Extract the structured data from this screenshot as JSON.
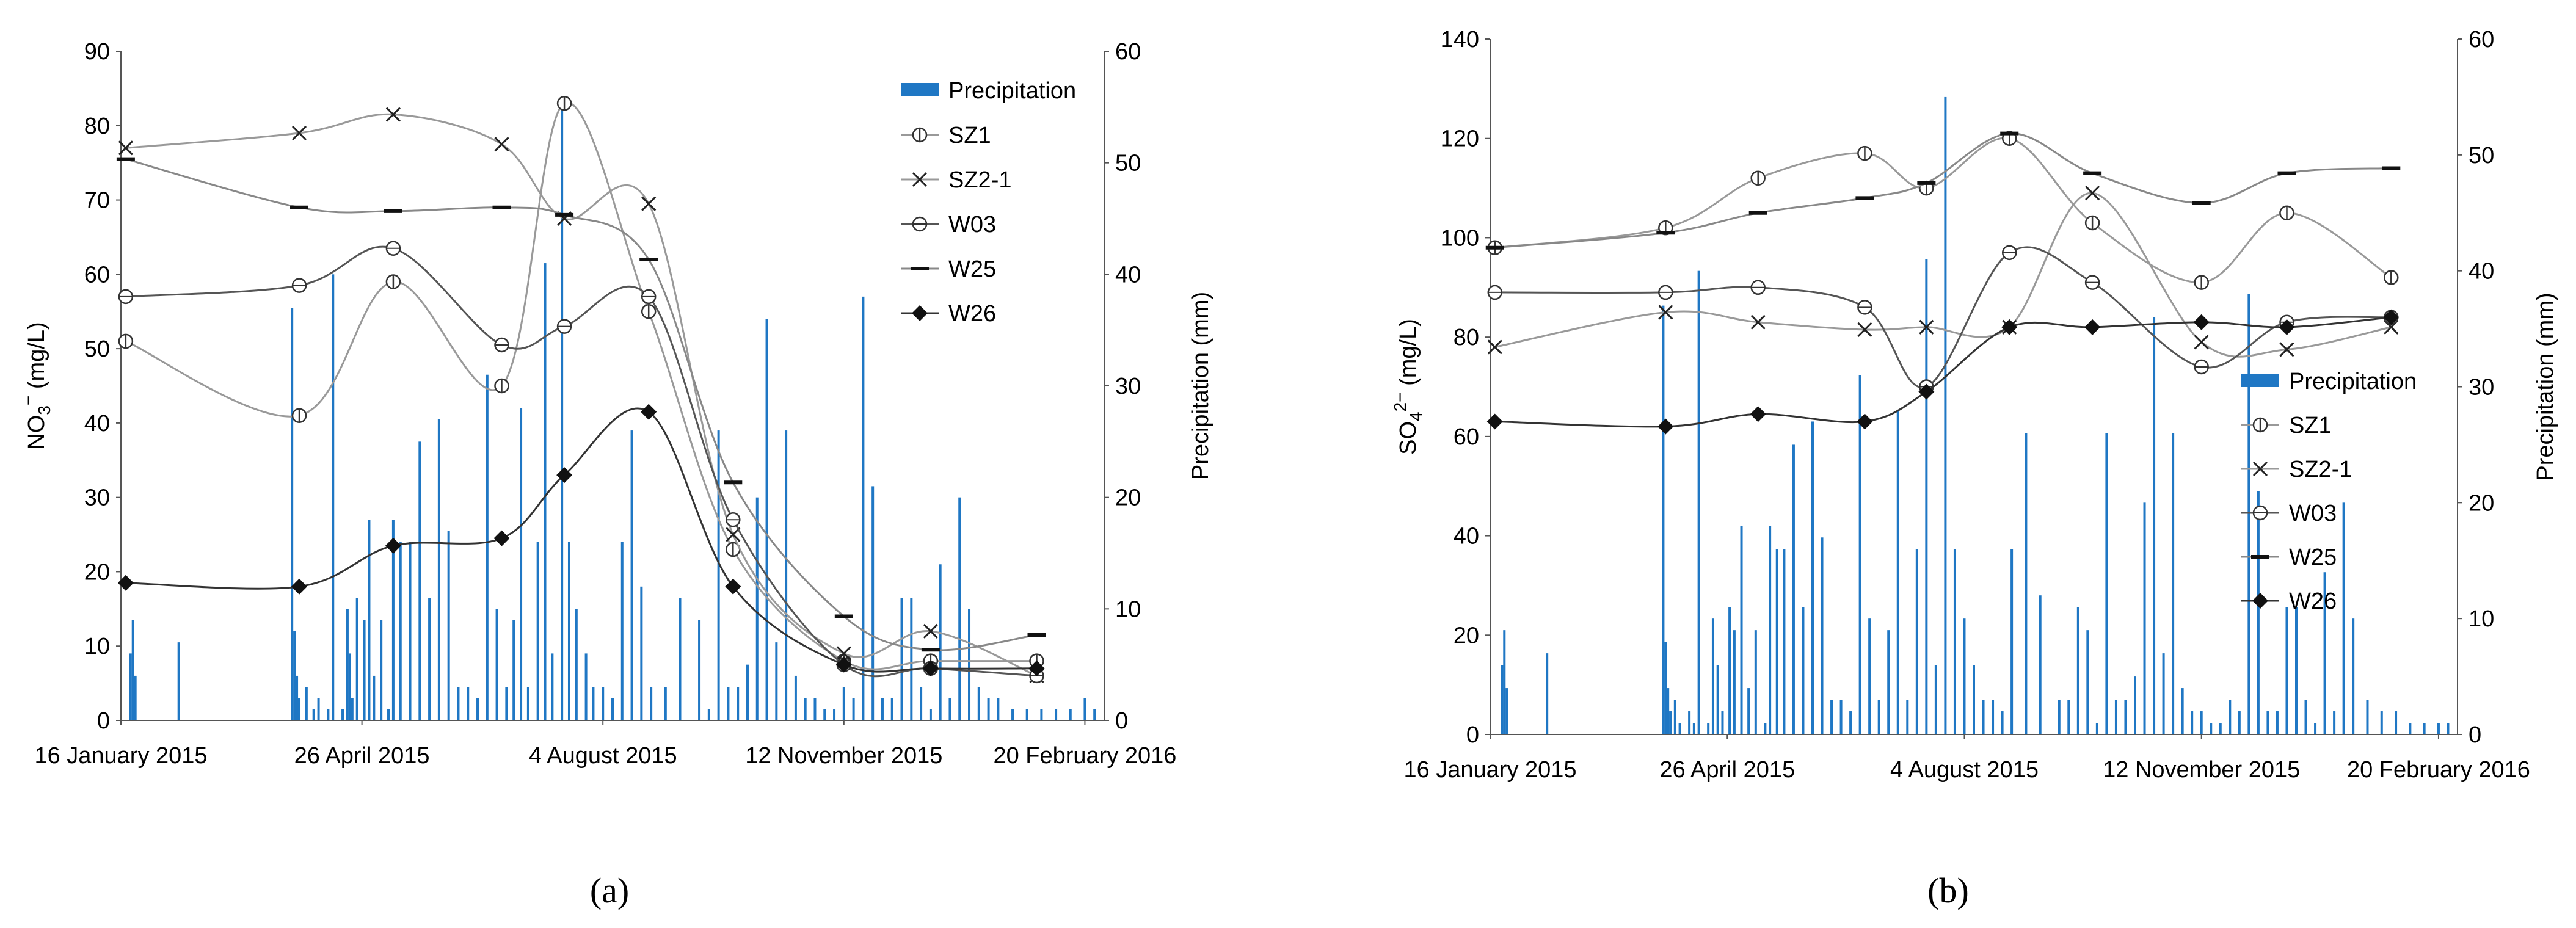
{
  "chart_data": [
    {
      "panel": "a",
      "panel_label": "(a)",
      "type": "line",
      "xlabel": "",
      "ylabel": "NO₃⁻ (mg/L)",
      "ylabel_parts": [
        "NO",
        "3",
        "−",
        " (mg/L)"
      ],
      "y2label": "Precipitation (mm)",
      "ylim": [
        0,
        90
      ],
      "yticks": [
        "0",
        "10",
        "20",
        "30",
        "40",
        "50",
        "60",
        "70",
        "80",
        "90"
      ],
      "y2lim": [
        0,
        60
      ],
      "y2ticks": [
        "0",
        "10",
        "20",
        "30",
        "40",
        "50",
        "60"
      ],
      "xlim": [
        0,
        408
      ],
      "xticks": [
        {
          "day": 0,
          "label": "16 January 2015"
        },
        {
          "day": 100,
          "label": "26 April 2015"
        },
        {
          "day": 200,
          "label": "4 August 2015"
        },
        {
          "day": 300,
          "label": "12 November 2015"
        },
        {
          "day": 400,
          "label": "20 February 2016"
        }
      ],
      "legend": [
        "Precipitation",
        "SZ1",
        "SZ2-1",
        "W03",
        "W25",
        "W26"
      ],
      "legend_position": "top-right",
      "series": [
        {
          "name": "SZ1",
          "marker": "circle-bar",
          "color": "#999999",
          "x": [
            2,
            74,
            113,
            158,
            184,
            219,
            254,
            300,
            336,
            380
          ],
          "y": [
            51,
            41,
            59,
            45,
            83,
            55,
            23,
            8,
            8,
            8
          ]
        },
        {
          "name": "SZ2-1",
          "marker": "x",
          "color": "#999999",
          "x": [
            2,
            74,
            113,
            158,
            184,
            219,
            254,
            300,
            336,
            380
          ],
          "y": [
            77,
            79,
            81.5,
            77.5,
            67.5,
            69.5,
            25,
            9,
            12,
            6
          ]
        },
        {
          "name": "W03",
          "marker": "circle-open",
          "color": "#555555",
          "x": [
            2,
            74,
            113,
            158,
            184,
            219,
            254,
            300,
            336,
            380
          ],
          "y": [
            57,
            58.5,
            63.5,
            50.5,
            53,
            57,
            27,
            7.5,
            7,
            6
          ]
        },
        {
          "name": "W25",
          "marker": "dash",
          "color": "#888888",
          "x": [
            2,
            74,
            113,
            158,
            184,
            219,
            254,
            300,
            336,
            380
          ],
          "y": [
            75.5,
            69,
            68.5,
            69,
            68,
            62,
            32,
            14,
            9.5,
            11.5
          ]
        },
        {
          "name": "W26",
          "marker": "diamond",
          "color": "#333333",
          "x": [
            2,
            74,
            113,
            158,
            184,
            219,
            254,
            300,
            336,
            380
          ],
          "y": [
            18.5,
            18,
            23.5,
            24.5,
            33,
            41.5,
            18,
            7.5,
            7,
            7
          ]
        }
      ],
      "precipitation": {
        "day": [
          4,
          5,
          6,
          24,
          71,
          72,
          73,
          74,
          77,
          80,
          82,
          86,
          88,
          92,
          94,
          95,
          96,
          98,
          101,
          103,
          105,
          108,
          111,
          113,
          116,
          120,
          124,
          128,
          132,
          136,
          140,
          144,
          148,
          152,
          156,
          160,
          163,
          166,
          169,
          173,
          176,
          179,
          183,
          186,
          189,
          193,
          196,
          200,
          204,
          208,
          212,
          216,
          220,
          226,
          232,
          240,
          244,
          248,
          252,
          256,
          260,
          264,
          268,
          272,
          276,
          280,
          284,
          288,
          292,
          296,
          300,
          304,
          308,
          312,
          316,
          320,
          324,
          328,
          332,
          336,
          340,
          344,
          348,
          352,
          356,
          360,
          364,
          370,
          376,
          382,
          388,
          394,
          400,
          404
        ],
        "mm": [
          6,
          9,
          4,
          7,
          37,
          8,
          4,
          2,
          3,
          1,
          2,
          1,
          40,
          1,
          10,
          6,
          2,
          11,
          9,
          18,
          4,
          9,
          1,
          18,
          16,
          16,
          25,
          11,
          27,
          17,
          3,
          3,
          2,
          31,
          10,
          3,
          9,
          28,
          3,
          16,
          41,
          6,
          55,
          16,
          10,
          6,
          3,
          3,
          2,
          16,
          26,
          12,
          3,
          3,
          11,
          9,
          1,
          26,
          3,
          3,
          5,
          20,
          36,
          7,
          26,
          4,
          2,
          2,
          1,
          1,
          3,
          2,
          38,
          21,
          2,
          2,
          11,
          11,
          3,
          1,
          14,
          2,
          20,
          10,
          3,
          2,
          2,
          1,
          1,
          1,
          1,
          1,
          2,
          1
        ]
      }
    },
    {
      "panel": "b",
      "panel_label": "(b)",
      "type": "line",
      "xlabel": "",
      "ylabel": "SO₄²⁻ (mg/L)",
      "ylabel_parts": [
        "SO",
        "4",
        "2−",
        " (mg/L)"
      ],
      "y2label": "Precipitation (mm)",
      "ylim": [
        0,
        140
      ],
      "yticks": [
        "0",
        "20",
        "40",
        "60",
        "80",
        "100",
        "120",
        "140"
      ],
      "y2lim": [
        0,
        60
      ],
      "y2ticks": [
        "0",
        "10",
        "20",
        "30",
        "40",
        "50",
        "60"
      ],
      "xlim": [
        0,
        408
      ],
      "xticks": [
        {
          "day": 0,
          "label": "16 January 2015"
        },
        {
          "day": 100,
          "label": "26 April 2015"
        },
        {
          "day": 200,
          "label": "4 August 2015"
        },
        {
          "day": 300,
          "label": "12 November 2015"
        },
        {
          "day": 400,
          "label": "20 February 2016"
        }
      ],
      "legend": [
        "Precipitation",
        "SZ1",
        "SZ2-1",
        "W03",
        "W25",
        "W26"
      ],
      "legend_position": "center-right",
      "series": [
        {
          "name": "SZ1",
          "marker": "circle-bar",
          "color": "#999999",
          "x": [
            2,
            74,
            113,
            158,
            184,
            219,
            254,
            300,
            336,
            380
          ],
          "y": [
            98,
            102,
            112,
            117,
            110,
            120,
            103,
            91,
            105,
            92
          ]
        },
        {
          "name": "SZ2-1",
          "marker": "x",
          "color": "#999999",
          "x": [
            2,
            74,
            113,
            158,
            184,
            219,
            254,
            300,
            336,
            380
          ],
          "y": [
            78,
            85,
            83,
            81.5,
            82,
            82,
            109,
            79,
            77.5,
            82
          ]
        },
        {
          "name": "W03",
          "marker": "circle-open",
          "color": "#555555",
          "x": [
            2,
            74,
            113,
            158,
            184,
            219,
            254,
            300,
            336,
            380
          ],
          "y": [
            89,
            89,
            90,
            86,
            70,
            97,
            91,
            74,
            83,
            84
          ]
        },
        {
          "name": "W25",
          "marker": "dash",
          "color": "#888888",
          "x": [
            2,
            74,
            113,
            158,
            184,
            219,
            254,
            300,
            336,
            380
          ],
          "y": [
            98,
            101,
            105,
            108,
            111,
            121,
            113,
            107,
            113,
            114
          ]
        },
        {
          "name": "W26",
          "marker": "diamond",
          "color": "#333333",
          "x": [
            2,
            74,
            113,
            158,
            184,
            219,
            254,
            300,
            336,
            380
          ],
          "y": [
            63,
            62,
            64.5,
            63,
            69,
            82,
            82,
            83,
            82,
            84
          ]
        }
      ],
      "precipitation": {
        "day": [
          5,
          6,
          7,
          24,
          73,
          74,
          75,
          76,
          78,
          80,
          84,
          86,
          88,
          92,
          94,
          96,
          98,
          101,
          103,
          106,
          109,
          112,
          116,
          118,
          121,
          124,
          128,
          132,
          136,
          140,
          144,
          148,
          152,
          156,
          160,
          164,
          168,
          172,
          176,
          180,
          184,
          188,
          192,
          196,
          200,
          204,
          208,
          212,
          216,
          220,
          226,
          232,
          240,
          244,
          248,
          252,
          256,
          260,
          264,
          268,
          272,
          276,
          280,
          284,
          288,
          292,
          296,
          300,
          304,
          308,
          312,
          316,
          320,
          324,
          328,
          332,
          336,
          340,
          344,
          348,
          352,
          356,
          360,
          364,
          370,
          376,
          382,
          388,
          394,
          400,
          404
        ],
        "mm": [
          6,
          9,
          4,
          7,
          37,
          8,
          4,
          2,
          3,
          1,
          2,
          1,
          40,
          1,
          10,
          6,
          2,
          11,
          9,
          18,
          4,
          9,
          1,
          18,
          16,
          16,
          25,
          11,
          27,
          17,
          3,
          3,
          2,
          31,
          10,
          3,
          9,
          28,
          3,
          16,
          41,
          6,
          55,
          16,
          10,
          6,
          3,
          3,
          2,
          16,
          26,
          12,
          3,
          3,
          11,
          9,
          1,
          26,
          3,
          3,
          5,
          20,
          36,
          7,
          26,
          4,
          2,
          2,
          1,
          1,
          3,
          2,
          38,
          21,
          2,
          2,
          11,
          11,
          3,
          1,
          14,
          2,
          20,
          10,
          3,
          2,
          2,
          1,
          1,
          1,
          1
        ]
      }
    }
  ]
}
